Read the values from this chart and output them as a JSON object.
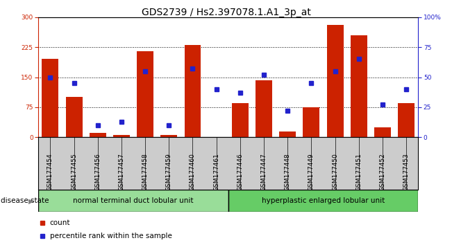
{
  "title": "GDS2739 / Hs2.397078.1.A1_3p_at",
  "samples": [
    "GSM177454",
    "GSM177455",
    "GSM177456",
    "GSM177457",
    "GSM177458",
    "GSM177459",
    "GSM177460",
    "GSM177461",
    "GSM177446",
    "GSM177447",
    "GSM177448",
    "GSM177449",
    "GSM177450",
    "GSM177451",
    "GSM177452",
    "GSM177453"
  ],
  "counts": [
    195,
    100,
    10,
    5,
    215,
    5,
    230,
    0,
    85,
    143,
    15,
    75,
    280,
    255,
    25,
    85
  ],
  "percentiles": [
    50,
    45,
    10,
    13,
    55,
    10,
    57,
    40,
    37,
    52,
    22,
    45,
    55,
    65,
    27,
    40
  ],
  "group1_label": "normal terminal duct lobular unit",
  "group2_label": "hyperplastic enlarged lobular unit",
  "group1_count": 8,
  "group2_count": 8,
  "bar_color": "#cc2200",
  "square_color": "#2222cc",
  "group1_bg": "#99dd99",
  "group2_bg": "#66cc66",
  "tick_bg_color": "#cccccc",
  "ylim_left": [
    0,
    300
  ],
  "ylim_right": [
    0,
    100
  ],
  "yticks_left": [
    0,
    75,
    150,
    225,
    300
  ],
  "yticks_right": [
    0,
    25,
    50,
    75,
    100
  ],
  "grid_lines": [
    75,
    150,
    225
  ],
  "title_fontsize": 10,
  "tick_fontsize": 6.5,
  "label_fontsize": 7.5,
  "legend_fontsize": 7.5
}
